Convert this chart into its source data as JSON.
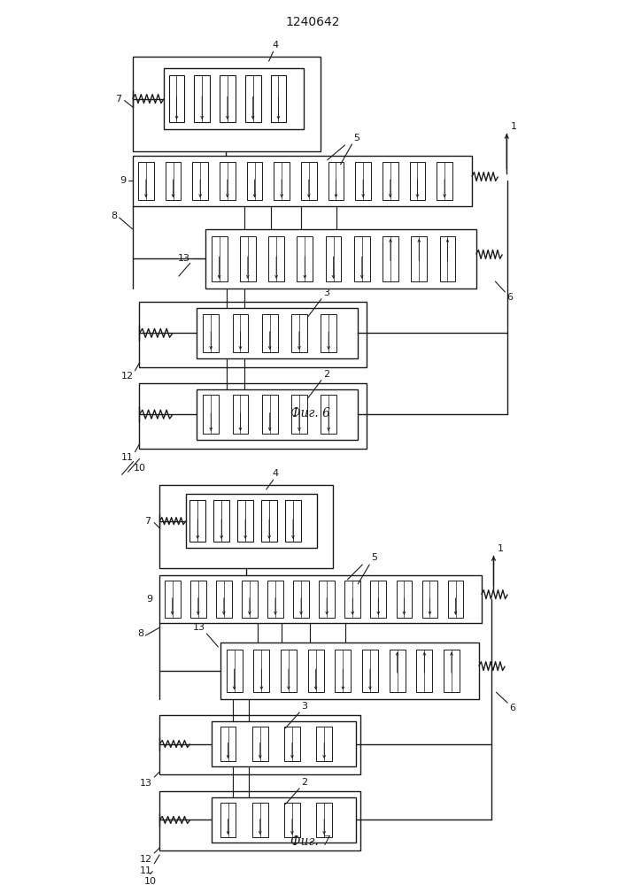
{
  "title": "1240642",
  "fig6_label": "Фиг. 6",
  "fig7_label": "Фиг. 7",
  "bg_color": "#ffffff",
  "line_color": "#1a1a1a",
  "lw": 1.0
}
